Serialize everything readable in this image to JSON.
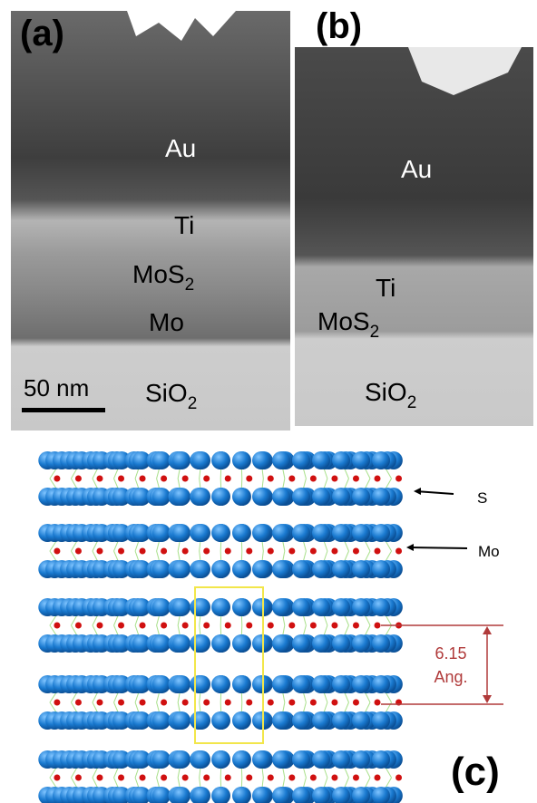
{
  "panels": [
    {
      "label": "(a)",
      "layers": [
        {
          "text": "Au"
        },
        {
          "text": "Ti"
        },
        {
          "text": "MoS",
          "sub": "2"
        },
        {
          "text": "Mo"
        },
        {
          "text": "SiO",
          "sub": "2"
        }
      ],
      "scale_bar": "50 nm"
    },
    {
      "label": "(b)",
      "layers": [
        {
          "text": "Au"
        },
        {
          "text": "Ti"
        },
        {
          "text": "MoS",
          "sub": "2"
        },
        {
          "text": "SiO",
          "sub": "2"
        }
      ]
    },
    {
      "label": "(c)",
      "annotations": [
        "S",
        "Mo"
      ],
      "spacing": {
        "value": "6.15",
        "unit": "Ang."
      }
    }
  ]
}
